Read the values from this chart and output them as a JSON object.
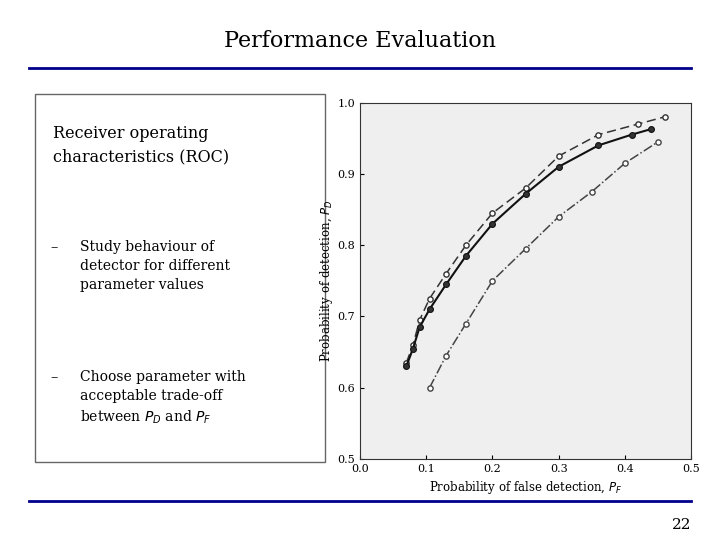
{
  "title": "Performance Evaluation",
  "title_fontsize": 16,
  "title_font": "serif",
  "bg_color": "#ffffff",
  "header_line_color": "#00008B",
  "footer_line_color": "#00008B",
  "box_text_title": "Receiver operating\ncharacteristics (ROC)",
  "box_bullet1": "Study behaviour of\ndetector for different\nparameter values",
  "box_bullet2": "Choose parameter with\nacceptable trade-off\nbetween $P_D$ and $P_F$",
  "page_number": "22",
  "xlabel": "Probability of false detection, $P_F$",
  "ylabel": "Probability of detection, $P_D$",
  "xlim": [
    0,
    0.5
  ],
  "ylim": [
    0.5,
    1.0
  ],
  "xticks": [
    0,
    0.1,
    0.2,
    0.3,
    0.4,
    0.5
  ],
  "yticks": [
    0.5,
    0.6,
    0.7,
    0.8,
    0.9,
    1.0
  ],
  "curve1_x": [
    0.07,
    0.08,
    0.09,
    0.105,
    0.13,
    0.16,
    0.2,
    0.25,
    0.3,
    0.36,
    0.42,
    0.46
  ],
  "curve1_y": [
    0.635,
    0.66,
    0.695,
    0.725,
    0.76,
    0.8,
    0.845,
    0.88,
    0.925,
    0.955,
    0.97,
    0.98
  ],
  "curve2_x": [
    0.07,
    0.08,
    0.09,
    0.105,
    0.13,
    0.16,
    0.2,
    0.25,
    0.3,
    0.36,
    0.41,
    0.44
  ],
  "curve2_y": [
    0.63,
    0.655,
    0.685,
    0.71,
    0.745,
    0.785,
    0.83,
    0.872,
    0.91,
    0.94,
    0.955,
    0.963
  ],
  "curve3_x": [
    0.105,
    0.13,
    0.16,
    0.2,
    0.25,
    0.3,
    0.35,
    0.4,
    0.45
  ],
  "curve3_y": [
    0.6,
    0.645,
    0.69,
    0.75,
    0.795,
    0.84,
    0.875,
    0.915,
    0.945
  ]
}
